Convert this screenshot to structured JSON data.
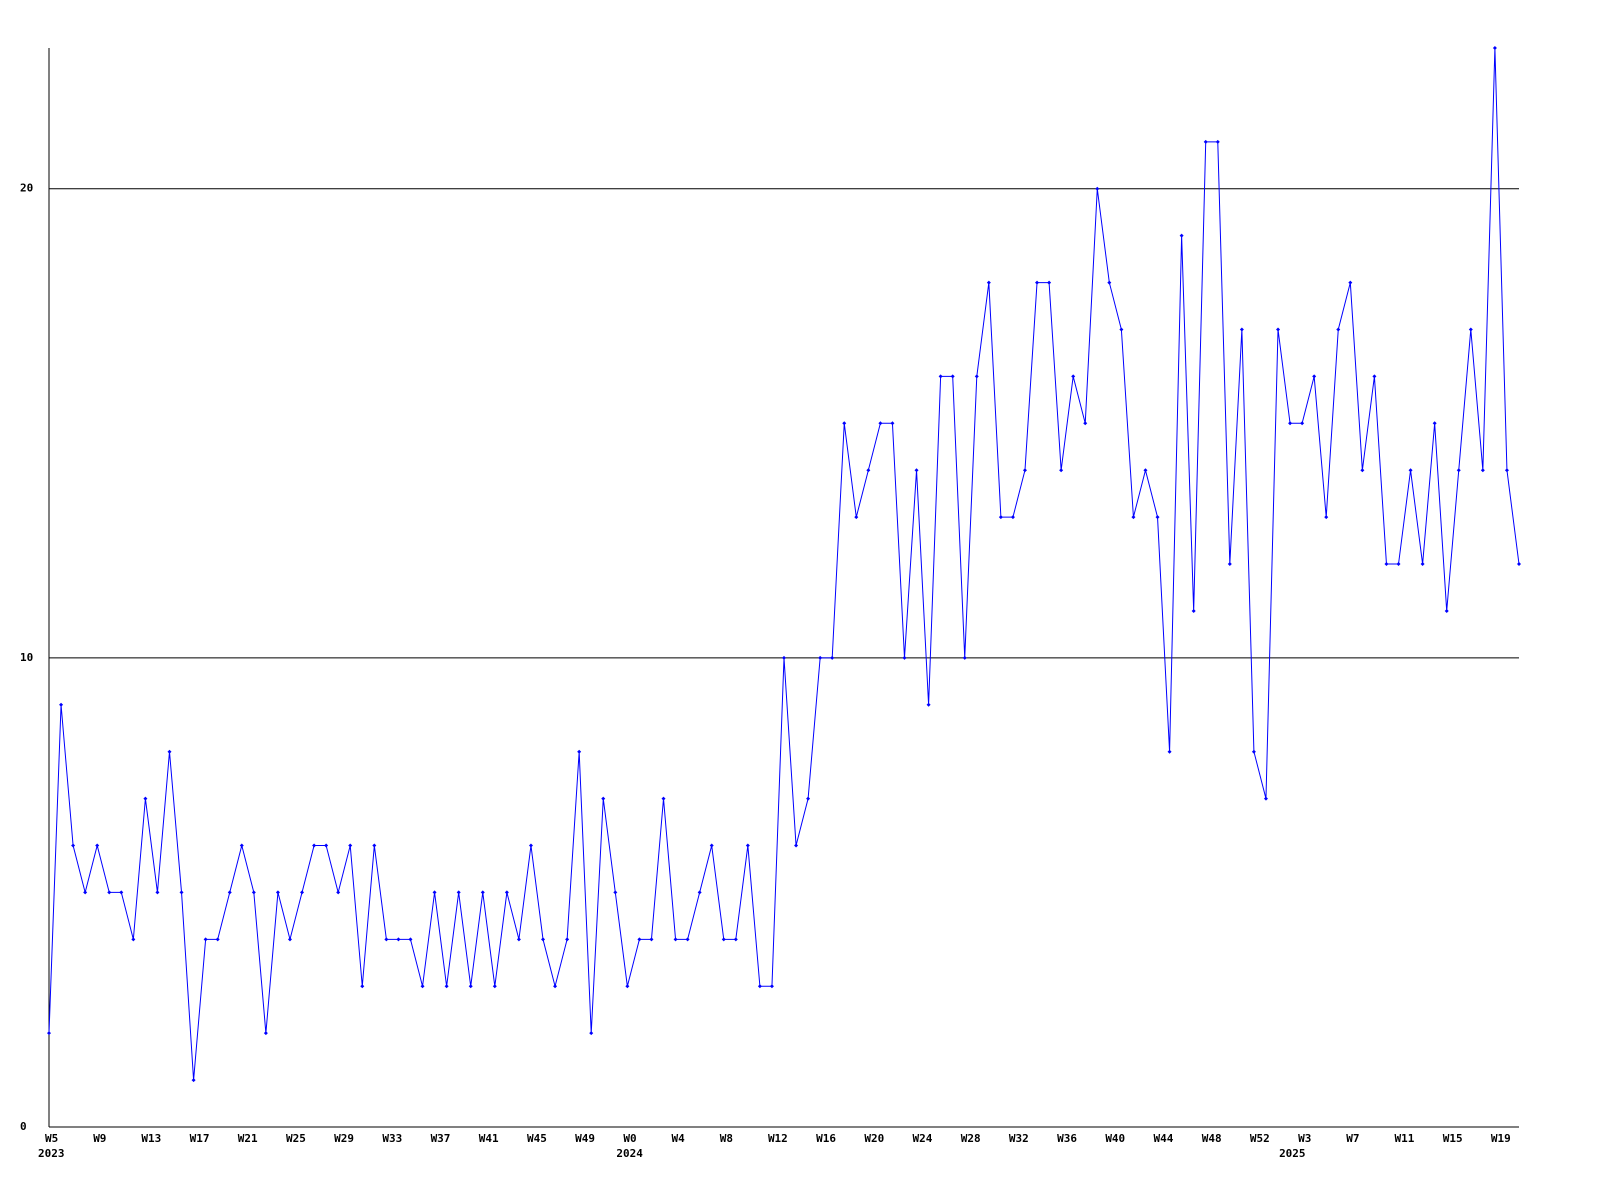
{
  "chart_data": {
    "type": "line",
    "color": "#0000ff",
    "grid": true,
    "ylim": [
      0,
      23
    ],
    "yticks": [
      0,
      10,
      20
    ],
    "categories": [
      "W5",
      null,
      null,
      null,
      "W9",
      null,
      null,
      null,
      "W13",
      null,
      null,
      null,
      "W17",
      null,
      null,
      null,
      "W21",
      null,
      null,
      null,
      "W25",
      null,
      null,
      null,
      "W29",
      null,
      null,
      null,
      "W33",
      null,
      null,
      null,
      "W37",
      null,
      null,
      null,
      "W41",
      null,
      null,
      null,
      "W45",
      null,
      null,
      null,
      "W49",
      null,
      null,
      null,
      "W0",
      null,
      null,
      null,
      "W4",
      null,
      null,
      null,
      "W8",
      null,
      null,
      null,
      "W12",
      null,
      null,
      null,
      "W16",
      null,
      null,
      null,
      "W20",
      null,
      null,
      null,
      "W24",
      null,
      null,
      null,
      "W28",
      null,
      null,
      null,
      "W32",
      null,
      null,
      null,
      "W36",
      null,
      null,
      null,
      "W40",
      null,
      null,
      null,
      "W44",
      null,
      null,
      null,
      "W48",
      null,
      null,
      null,
      "W52",
      null,
      null,
      null,
      "W3",
      null,
      null,
      null,
      "W7",
      null,
      null,
      null,
      "W11",
      null,
      null,
      null,
      "W15",
      null,
      null,
      null,
      "W19",
      null,
      null
    ],
    "category_groups": [
      "2023",
      null,
      null,
      null,
      null,
      null,
      null,
      null,
      null,
      null,
      null,
      null,
      null,
      null,
      null,
      null,
      null,
      null,
      null,
      null,
      null,
      null,
      null,
      null,
      null,
      null,
      null,
      null,
      null,
      null,
      null,
      null,
      null,
      null,
      null,
      null,
      null,
      null,
      null,
      null,
      null,
      null,
      null,
      null,
      null,
      null,
      null,
      null,
      "2024",
      null,
      null,
      null,
      null,
      null,
      null,
      null,
      null,
      null,
      null,
      null,
      null,
      null,
      null,
      null,
      null,
      null,
      null,
      null,
      null,
      null,
      null,
      null,
      null,
      null,
      null,
      null,
      null,
      null,
      null,
      null,
      null,
      null,
      null,
      null,
      null,
      null,
      null,
      null,
      null,
      null,
      null,
      null,
      null,
      null,
      null,
      null,
      null,
      null,
      null,
      null,
      null,
      null,
      null,
      "2025",
      null,
      null,
      null,
      null,
      null,
      null,
      null,
      null,
      null,
      null,
      null,
      null,
      null,
      null,
      null,
      null,
      null,
      null,
      null,
      null,
      null
    ],
    "values": [
      2,
      9,
      6,
      5,
      6,
      5,
      5,
      4,
      7,
      5,
      8,
      5,
      1,
      4,
      4,
      5,
      6,
      5,
      2,
      5,
      4,
      5,
      6,
      6,
      5,
      6,
      3,
      6,
      4,
      4,
      4,
      3,
      5,
      3,
      5,
      3,
      5,
      3,
      5,
      4,
      6,
      4,
      3,
      4,
      8,
      2,
      7,
      5,
      3,
      4,
      4,
      7,
      4,
      4,
      5,
      6,
      4,
      4,
      6,
      3,
      3,
      10,
      6,
      7,
      10,
      10,
      15,
      13,
      14,
      15,
      15,
      10,
      14,
      9,
      16,
      16,
      10,
      16,
      18,
      13,
      13,
      14,
      18,
      18,
      14,
      16,
      15,
      20,
      18,
      17,
      13,
      14,
      13,
      8,
      19,
      11,
      21,
      21,
      12,
      17,
      8,
      7,
      17,
      15,
      15,
      16,
      13,
      17,
      18,
      14,
      16,
      12,
      12,
      14,
      12,
      15,
      11,
      14,
      17,
      14,
      23,
      14,
      12
    ]
  }
}
